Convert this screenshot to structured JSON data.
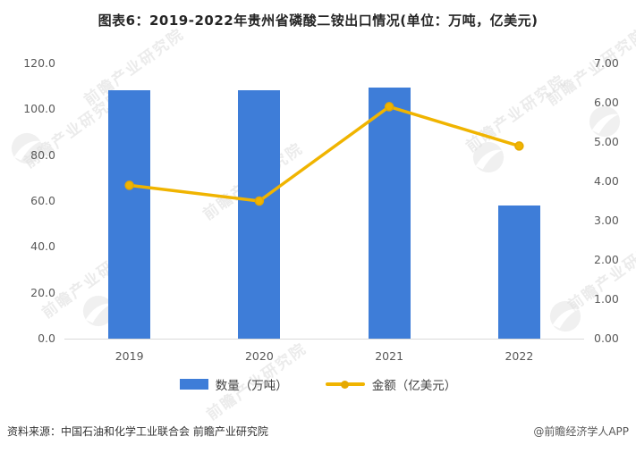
{
  "title": "图表6：2019-2022年贵州省磷酸二铵出口情况(单位：万吨，亿美元)",
  "chart_data": {
    "type": "bar",
    "subtype": "bar+line combo, dual axis",
    "categories": [
      "2019",
      "2020",
      "2021",
      "2022"
    ],
    "series": [
      {
        "name": "数量（万吨）",
        "type": "bar",
        "axis": "left",
        "values": [
          108.4,
          108.3,
          109.5,
          58.0
        ]
      },
      {
        "name": "金额（亿美元）",
        "type": "line",
        "axis": "right",
        "values": [
          3.9,
          3.5,
          5.9,
          4.9
        ]
      }
    ],
    "title": "图表6：2019-2022年贵州省磷酸二铵出口情况(单位：万吨，亿美元)",
    "left_axis": {
      "min": 0,
      "max": 120,
      "step": 20,
      "ticks": [
        "120.0",
        "100.0",
        "80.0",
        "60.0",
        "40.0",
        "20.0",
        "0.0"
      ]
    },
    "right_axis": {
      "min": 0,
      "max": 7,
      "step": 1,
      "ticks": [
        "7.00",
        "6.00",
        "5.00",
        "4.00",
        "3.00",
        "2.00",
        "1.00",
        "0.00"
      ]
    },
    "grid": false,
    "legend_position": "bottom"
  },
  "legend": {
    "bar_label": "数量（万吨）",
    "line_label": "金额（亿美元）"
  },
  "footer": {
    "source": "资料来源：中国石油和化学工业联合会 前瞻产业研究院",
    "credit": "@前瞻经济学人APP"
  },
  "watermark": {
    "text": "前瞻产业研究院"
  },
  "colors": {
    "bar": "#3E7DD8",
    "line": "#F0B400",
    "line_marker": "#E5A800",
    "axis_line": "#D9D9D9",
    "tick_text": "#595959",
    "title_text": "#262626"
  }
}
